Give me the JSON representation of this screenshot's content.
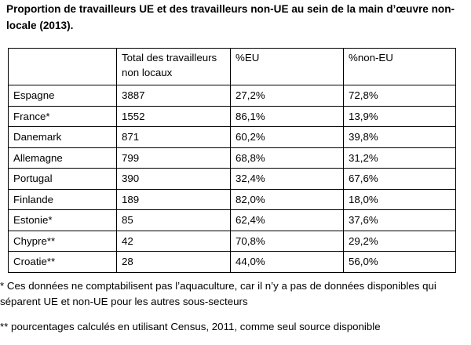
{
  "title": "Proportion de travailleurs UE et des travailleurs non-UE au sein de la main d’œuvre non-locale (2013).",
  "table": {
    "headers": [
      "",
      "Total des travailleurs non locaux",
      "%EU",
      "%non-EU"
    ],
    "rows": [
      {
        "country": "Espagne",
        "total": "3887",
        "eu": "27,2%",
        "non_eu": "72,8%"
      },
      {
        "country": "France*",
        "total": "1552",
        "eu": "86,1%",
        "non_eu": "13,9%"
      },
      {
        "country": "Danemark",
        "total": "871",
        "eu": "60,2%",
        "non_eu": "39,8%"
      },
      {
        "country": "Allemagne",
        "total": "799",
        "eu": "68,8%",
        "non_eu": "31,2%"
      },
      {
        "country": "Portugal",
        "total": "390",
        "eu": "32,4%",
        "non_eu": "67,6%"
      },
      {
        "country": "Finlande",
        "total": "189",
        "eu": "82,0%",
        "non_eu": "18,0%"
      },
      {
        "country": "Estonie*",
        "total": "85",
        "eu": "62,4%",
        "non_eu": "37,6%"
      },
      {
        "country": "Chypre**",
        "total": "42",
        "eu": "70,8%",
        "non_eu": "29,2%"
      },
      {
        "country": "Croatie**",
        "total": "28",
        "eu": "44,0%",
        "non_eu": "56,0%"
      }
    ]
  },
  "notes": {
    "note1": "* Ces données ne comptabilisent pas l’aquaculture, car il n’y a pas de données disponibles qui séparent UE et non-UE pour les autres sous-secteurs",
    "note2": "** pourcentages calculés en utilisant Census, 2011, comme seul source disponible"
  }
}
